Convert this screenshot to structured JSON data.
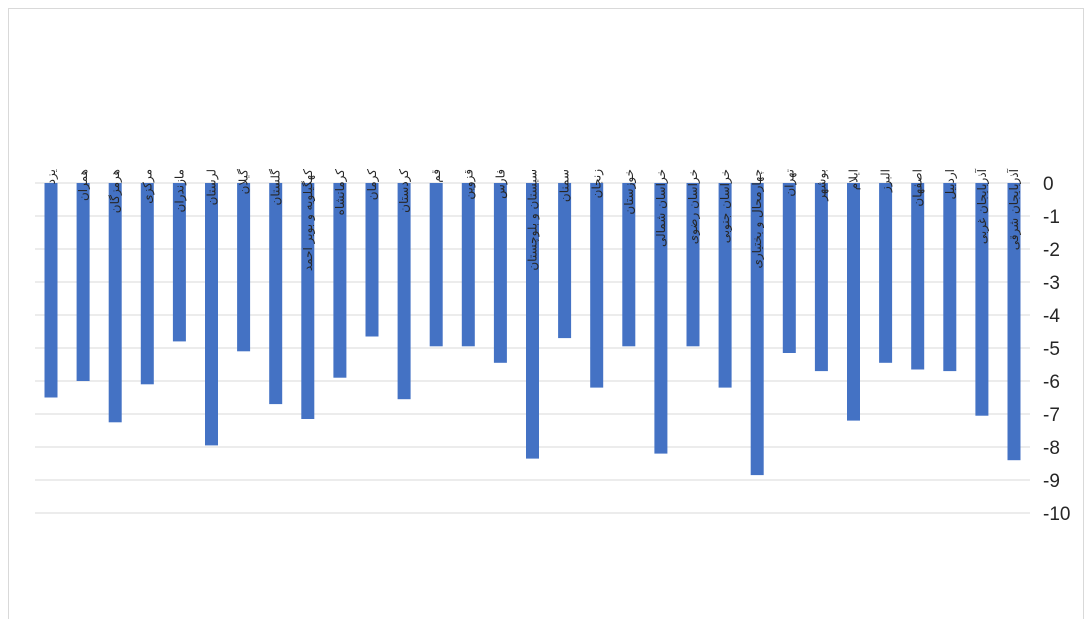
{
  "chart_data": {
    "type": "bar",
    "categories": [
      "یزد",
      "همران",
      "هرمزگان",
      "مرکزی",
      "مازندران",
      "لرستان",
      "گیلان",
      "گلستان",
      "کهگیلویه و بویر احمد",
      "کرمانشاه",
      "کرمان",
      "کردستان",
      "قم",
      "قزوین",
      "فارس",
      "سیستان و بلوچستان",
      "سمنان",
      "زنجان",
      "خوزستان",
      "خراسان شمالی",
      "خراسان رضوی",
      "خراسان جنوبی",
      "چهارمحال و بختیاری",
      "تهران",
      "بوشهر",
      "ایلام",
      "البرز",
      "اصفهان",
      "اردبیل",
      "آذربایجان غربی",
      "آذربایجان شرقی"
    ],
    "values": [
      -6.5,
      -6.0,
      -7.25,
      -6.1,
      -4.8,
      -7.95,
      -5.1,
      -6.7,
      -7.15,
      -5.9,
      -4.65,
      -6.55,
      -4.95,
      -4.95,
      -5.45,
      -8.35,
      -4.7,
      -6.2,
      -4.95,
      -8.2,
      -4.95,
      -6.2,
      -8.85,
      -5.15,
      -5.7,
      -7.2,
      -5.45,
      -5.65,
      -5.7,
      -7.05,
      -8.4
    ],
    "yticks": [
      "0",
      "-1",
      "-2",
      "-3",
      "-4",
      "-5",
      "-6",
      "-7",
      "-8",
      "-9",
      "-10"
    ],
    "ylim": [
      -10,
      0
    ],
    "grid": true,
    "bar_color": "#4472c4",
    "gridline_color": "#d9d9d9"
  }
}
